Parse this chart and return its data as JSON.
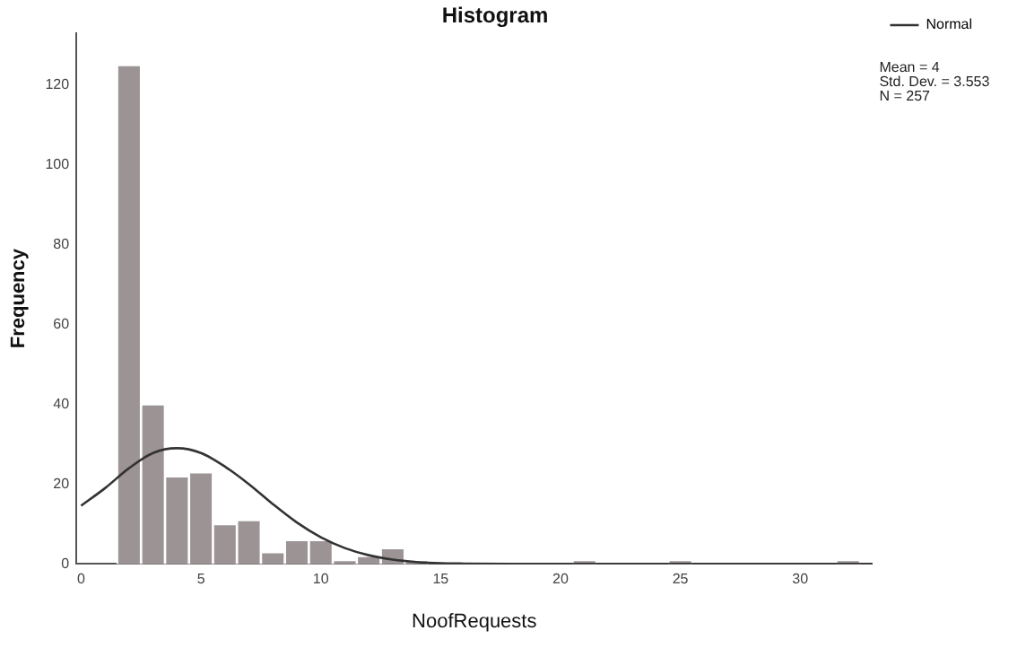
{
  "chart_data": {
    "type": "histogram",
    "title": "Histogram",
    "xlabel": "NoofRequests",
    "ylabel": "Frequency",
    "xlim": [
      -0.2,
      33
    ],
    "xticks": [
      0,
      5,
      10,
      15,
      20,
      25,
      30
    ],
    "ylim": [
      0,
      133
    ],
    "yticks": [
      0,
      20,
      40,
      60,
      80,
      100,
      120
    ],
    "grid": false,
    "legend": "top right",
    "annotations": [
      "Mean = 4",
      "Std. Dev. = 3.553",
      "N = 257"
    ],
    "series": [
      {
        "type": "histogram",
        "color": "#9c9494",
        "bins": [
          1.5,
          2.5,
          3.5,
          4.5,
          5.5,
          6.5,
          7.5,
          8.5,
          9.5,
          10.5,
          11.5,
          12.5,
          13.5,
          14.5,
          15.5,
          16.5,
          17.5,
          18.5,
          19.5,
          20.5,
          21.5,
          22.5,
          23.5,
          24.5,
          25.5,
          26.5,
          27.5,
          28.5,
          29.5,
          30.5,
          31.5,
          32.5
        ],
        "values": [
          125,
          40,
          22,
          23,
          10,
          11,
          3,
          6,
          6,
          1,
          2,
          4,
          1,
          0,
          0,
          0,
          0,
          0,
          0,
          1,
          0,
          0,
          0,
          1,
          0,
          0,
          0,
          0,
          0,
          0,
          1
        ]
      },
      {
        "type": "line",
        "name": "Normal",
        "color": "#333333",
        "x": [
          0,
          1,
          2,
          3,
          4,
          5,
          6,
          7,
          8,
          9,
          10,
          11,
          12,
          13,
          14,
          15,
          16,
          18,
          20,
          25,
          33
        ],
        "values": [
          14.6,
          19,
          24,
          27.8,
          29,
          27.8,
          24.4,
          20,
          15,
          10.4,
          6.7,
          4,
          2.2,
          1.1,
          0.5,
          0.2,
          0.1,
          0,
          0,
          0,
          0
        ]
      }
    ]
  }
}
